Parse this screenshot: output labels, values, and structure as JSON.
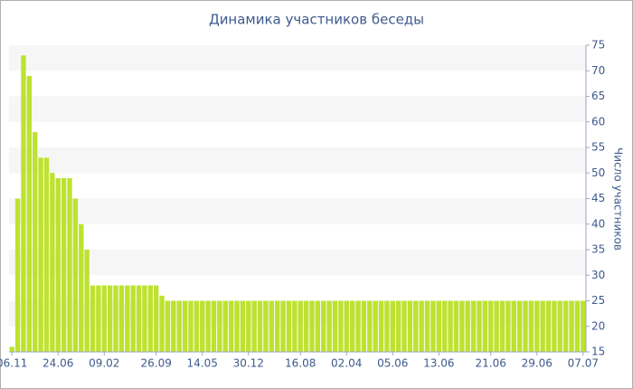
{
  "chart_data": {
    "type": "bar",
    "title": "Динамика участников беседы",
    "y_label": "Число участников",
    "color": "#bde22f",
    "grid": true,
    "ylim": [
      15,
      75
    ],
    "yticks": [
      15,
      20,
      25,
      30,
      35,
      40,
      45,
      50,
      55,
      60,
      65,
      70,
      75
    ],
    "categories": [
      "06.11",
      null,
      null,
      null,
      null,
      null,
      null,
      null,
      "24.06",
      null,
      null,
      null,
      null,
      null,
      null,
      null,
      "09.02",
      null,
      null,
      null,
      null,
      null,
      null,
      null,
      null,
      "26.09",
      null,
      null,
      null,
      null,
      null,
      null,
      null,
      "14.05",
      null,
      null,
      null,
      null,
      null,
      null,
      null,
      "30.12",
      null,
      null,
      null,
      null,
      null,
      null,
      null,
      null,
      "16.08",
      null,
      null,
      null,
      null,
      null,
      null,
      null,
      "02.04",
      null,
      null,
      null,
      null,
      null,
      null,
      null,
      "05.06",
      null,
      null,
      null,
      null,
      null,
      null,
      null,
      "13.06",
      null,
      null,
      null,
      null,
      null,
      null,
      null,
      null,
      "21.06",
      null,
      null,
      null,
      null,
      null,
      null,
      null,
      "29.06",
      null,
      null,
      null,
      null,
      null,
      null,
      null,
      "07.07"
    ],
    "values": [
      16,
      45,
      73,
      69,
      58,
      53,
      53,
      50,
      49,
      49,
      49,
      45,
      40,
      35,
      28,
      28,
      28,
      28,
      28,
      28,
      28,
      28,
      28,
      28,
      28,
      28,
      26,
      25,
      25,
      25,
      25,
      25,
      25,
      25,
      25,
      25,
      25,
      25,
      25,
      25,
      25,
      25,
      25,
      25,
      25,
      25,
      25,
      25,
      25,
      25,
      25,
      25,
      25,
      25,
      25,
      25,
      25,
      25,
      25,
      25,
      25,
      25,
      25,
      25,
      25,
      25,
      25,
      25,
      25,
      25,
      25,
      25,
      25,
      25,
      25,
      25,
      25,
      25,
      25,
      25,
      25,
      25,
      25,
      25,
      25,
      25,
      25,
      25,
      25,
      25,
      25,
      25,
      25,
      25,
      25,
      25,
      25,
      25,
      25,
      25
    ]
  }
}
